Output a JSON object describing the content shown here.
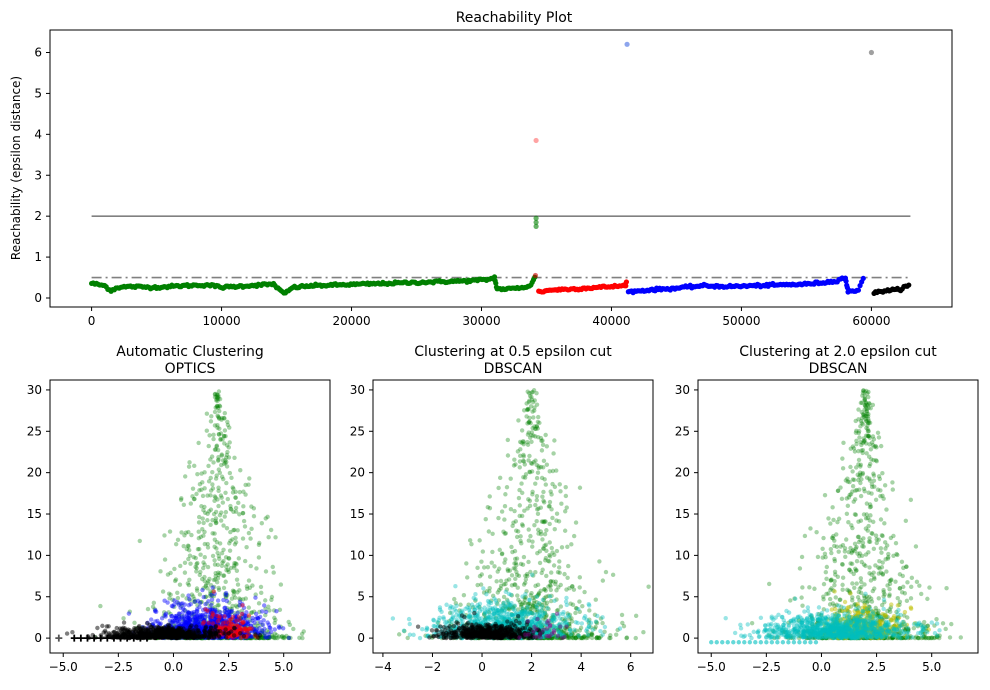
{
  "chart_data": [
    {
      "type": "scatter",
      "title": "Reachability Plot",
      "xlabel": "",
      "ylabel": "Reachability (epsilon distance)",
      "xlim": [
        -3200,
        66200
      ],
      "ylim": [
        -0.22,
        6.55
      ],
      "xticks": [
        0,
        10000,
        20000,
        30000,
        40000,
        50000,
        60000
      ],
      "yticks": [
        0,
        1,
        2,
        3,
        4,
        5,
        6
      ],
      "hlines": [
        {
          "y": 2.0,
          "x0": 0,
          "x1": 63000,
          "color": "#808080",
          "style": "solid"
        },
        {
          "y": 0.5,
          "x0": 0,
          "x1": 63000,
          "color": "#808080",
          "style": "dashdot"
        }
      ],
      "segments": [
        {
          "color": "#008000",
          "points": [
            [
              0,
              0.36
            ],
            [
              500,
              0.33
            ],
            [
              1000,
              0.3
            ],
            [
              1500,
              0.18
            ],
            [
              2000,
              0.26
            ],
            [
              3000,
              0.28
            ],
            [
              5000,
              0.26
            ],
            [
              7000,
              0.3
            ],
            [
              9000,
              0.32
            ],
            [
              10000,
              0.26
            ],
            [
              12000,
              0.3
            ],
            [
              14000,
              0.34
            ],
            [
              14800,
              0.1
            ],
            [
              15500,
              0.26
            ],
            [
              17000,
              0.3
            ],
            [
              19000,
              0.32
            ],
            [
              21000,
              0.34
            ],
            [
              23000,
              0.36
            ],
            [
              25000,
              0.38
            ],
            [
              27000,
              0.4
            ],
            [
              29000,
              0.42
            ],
            [
              30500,
              0.45
            ],
            [
              31000,
              0.5
            ],
            [
              31200,
              0.22
            ],
            [
              32000,
              0.22
            ],
            [
              33000,
              0.25
            ],
            [
              33800,
              0.3
            ],
            [
              34200,
              0.6
            ]
          ]
        },
        {
          "color": "#ff0000",
          "points": [
            [
              34400,
              0.15
            ],
            [
              35500,
              0.2
            ],
            [
              37000,
              0.22
            ],
            [
              38500,
              0.25
            ],
            [
              40000,
              0.28
            ],
            [
              41000,
              0.3
            ],
            [
              41200,
              0.4
            ]
          ]
        },
        {
          "color": "#0000ff",
          "points": [
            [
              41300,
              0.15
            ],
            [
              43000,
              0.2
            ],
            [
              45000,
              0.24
            ],
            [
              47000,
              0.3
            ],
            [
              49000,
              0.28
            ],
            [
              51000,
              0.3
            ],
            [
              53000,
              0.32
            ],
            [
              55000,
              0.34
            ],
            [
              57000,
              0.4
            ],
            [
              58000,
              0.5
            ],
            [
              58200,
              0.15
            ],
            [
              59000,
              0.2
            ],
            [
              59500,
              0.6
            ]
          ]
        },
        {
          "color": "#000000",
          "points": [
            [
              60200,
              0.12
            ],
            [
              61000,
              0.18
            ],
            [
              62000,
              0.2
            ],
            [
              63000,
              0.32
            ]
          ]
        }
      ],
      "points": [
        {
          "x": 41200,
          "y": 6.2,
          "color": "#4169e1"
        },
        {
          "x": 60000,
          "y": 6.0,
          "color": "#606060"
        },
        {
          "x": 34200,
          "y": 3.85,
          "color": "#ff6666"
        },
        {
          "x": 34200,
          "y": 1.95,
          "color": "#008000"
        },
        {
          "x": 34200,
          "y": 1.85,
          "color": "#008000"
        },
        {
          "x": 34200,
          "y": 1.75,
          "color": "#008000"
        },
        {
          "x": 34150,
          "y": 0.55,
          "color": "#cc0000"
        }
      ]
    },
    {
      "type": "scatter",
      "title": "Automatic Clustering",
      "subtitle": "OPTICS",
      "xlim": [
        -5.6,
        7.1
      ],
      "ylim": [
        -1.8,
        31.2
      ],
      "xticks": [
        -5.0,
        -2.5,
        0.0,
        2.5,
        5.0
      ],
      "xticklabels": [
        "−5.0",
        "−2.5",
        "0.0",
        "2.5",
        "5.0"
      ],
      "yticks": [
        0,
        5,
        10,
        15,
        20,
        25,
        30
      ],
      "clusters": [
        "green",
        "red",
        "blue",
        "black"
      ]
    },
    {
      "type": "scatter",
      "title": "Clustering at 0.5 epsilon cut",
      "subtitle": "DBSCAN",
      "xlim": [
        -4.4,
        6.9
      ],
      "ylim": [
        -1.8,
        31.2
      ],
      "xticks": [
        -4,
        -2,
        0,
        2,
        4,
        6
      ],
      "xticklabels": [
        "−4",
        "−2",
        "0",
        "2",
        "4",
        "6"
      ],
      "yticks": [
        0,
        5,
        10,
        15,
        20,
        25,
        30
      ],
      "clusters": [
        "green",
        "cyan",
        "black"
      ]
    },
    {
      "type": "scatter",
      "title": "Clustering at 2.0 epsilon cut",
      "subtitle": "DBSCAN",
      "xlim": [
        -5.6,
        7.1
      ],
      "ylim": [
        -1.8,
        31.2
      ],
      "xticks": [
        -5.0,
        -2.5,
        0.0,
        2.5,
        5.0
      ],
      "xticklabels": [
        "−5.0",
        "−2.5",
        "0.0",
        "2.5",
        "5.0"
      ],
      "yticks": [
        0,
        5,
        10,
        15,
        20,
        25,
        30
      ],
      "clusters": [
        "green",
        "yellow",
        "cyan"
      ]
    }
  ]
}
